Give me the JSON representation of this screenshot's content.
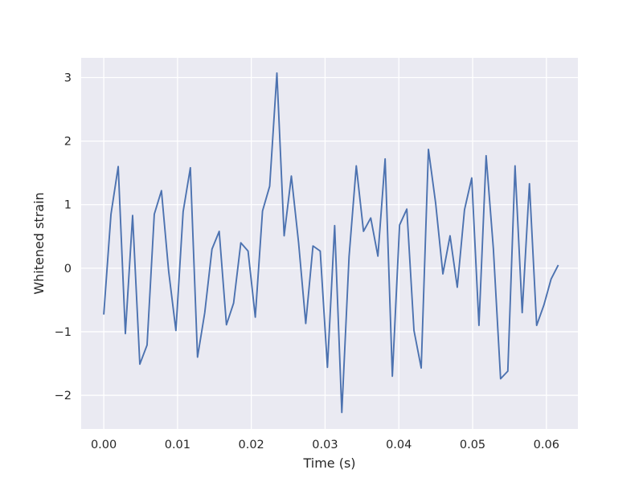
{
  "chart_data": {
    "type": "line",
    "title": "",
    "xlabel": "Time (s)",
    "ylabel": "Whitened strain",
    "xlim": [
      -0.00306,
      0.06427
    ],
    "ylim": [
      -2.53,
      3.31
    ],
    "grid": true,
    "x_ticks": [
      0.0,
      0.01,
      0.02,
      0.03,
      0.04,
      0.05,
      0.06
    ],
    "x_tick_labels": [
      "0.00",
      "0.01",
      "0.02",
      "0.03",
      "0.04",
      "0.05",
      "0.06"
    ],
    "y_ticks": [
      -2,
      -1,
      0,
      1,
      2,
      3
    ],
    "y_tick_labels": [
      "−2",
      "−1",
      "0",
      "1",
      "2",
      "3"
    ],
    "line_color": "#4c72b0",
    "background": "#eaeaf2",
    "series": [
      {
        "x": [
          0.0,
          0.00098,
          0.00196,
          0.00293,
          0.00391,
          0.00489,
          0.00587,
          0.00685,
          0.00782,
          0.0088,
          0.00978,
          0.01076,
          0.01174,
          0.01271,
          0.01369,
          0.01467,
          0.01565,
          0.01663,
          0.0176,
          0.01858,
          0.01956,
          0.02054,
          0.02152,
          0.02249,
          0.02347,
          0.02445,
          0.02543,
          0.02641,
          0.02738,
          0.02836,
          0.02934,
          0.03032,
          0.0313,
          0.03227,
          0.03325,
          0.03423,
          0.03521,
          0.03619,
          0.03716,
          0.03814,
          0.03912,
          0.0401,
          0.04108,
          0.04205,
          0.04303,
          0.04401,
          0.04499,
          0.04597,
          0.04694,
          0.04792,
          0.0489,
          0.04988,
          0.05086,
          0.05183,
          0.05281,
          0.05379,
          0.05477,
          0.05575,
          0.05672,
          0.0577,
          0.05868,
          0.05966,
          0.06064,
          0.06161
        ],
        "y": [
          -0.73,
          0.85,
          1.6,
          -1.03,
          0.83,
          -1.51,
          -1.21,
          0.85,
          1.22,
          -0.05,
          -0.98,
          0.89,
          1.58,
          -1.4,
          -0.7,
          0.3,
          0.58,
          -0.89,
          -0.55,
          0.4,
          0.27,
          -0.77,
          0.9,
          1.29,
          3.07,
          0.51,
          1.45,
          0.4,
          -0.87,
          0.35,
          0.27,
          -1.56,
          0.67,
          -2.27,
          0.18,
          1.61,
          0.58,
          0.79,
          0.19,
          1.72,
          -1.7,
          0.68,
          0.93,
          -0.98,
          -1.57,
          1.87,
          1.02,
          -0.09,
          0.51,
          -0.3,
          0.92,
          1.42,
          -0.9,
          1.77,
          0.31,
          -1.74,
          -1.62,
          1.61,
          -0.7,
          1.33,
          -0.9,
          -0.58,
          -0.17,
          0.05
        ]
      }
    ]
  }
}
